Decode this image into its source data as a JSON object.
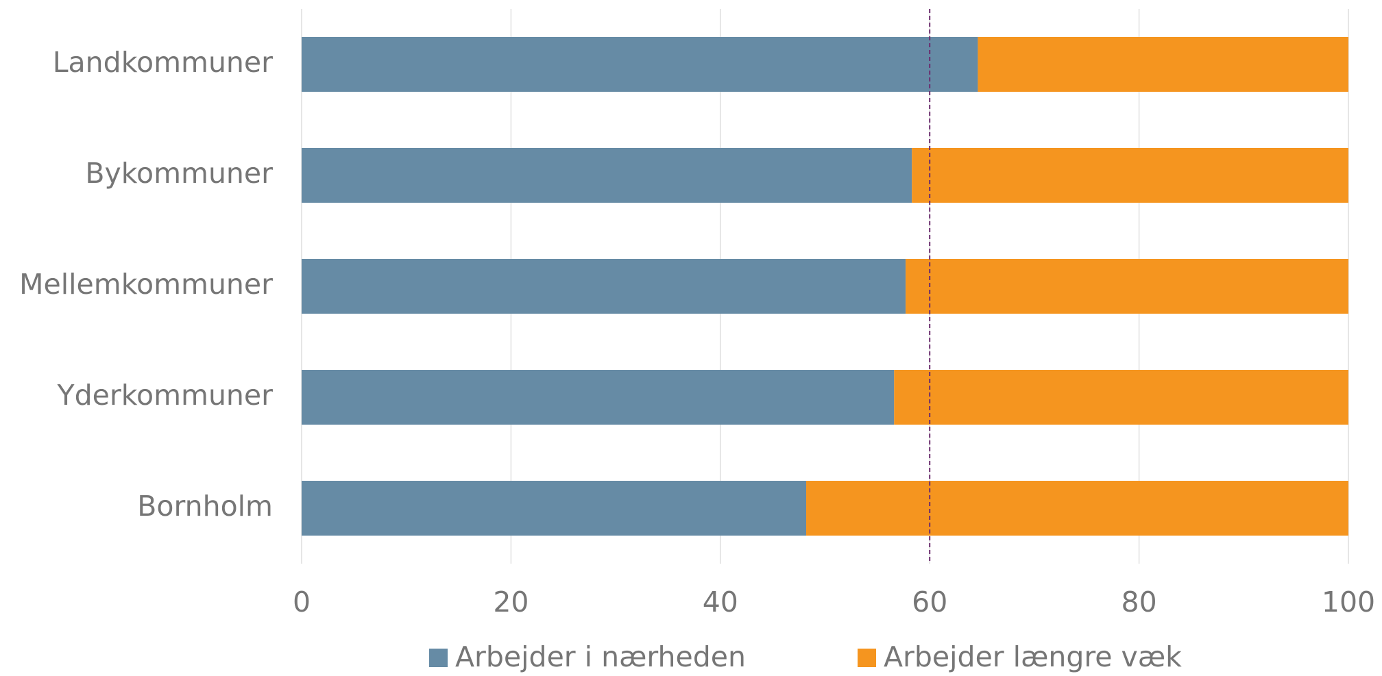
{
  "chart_data": {
    "type": "stacked_bar_horizontal",
    "categories": [
      "Landkommuner",
      "Bykommuner",
      "Mellemkommuner",
      "Yderkommuner",
      "Bornholm"
    ],
    "series": [
      {
        "name": "Arbejder i nærheden",
        "color": "#668ba5",
        "values": [
          64.6,
          58.3,
          57.7,
          56.6,
          48.2
        ]
      },
      {
        "name": "Arbejder længre væk",
        "color": "#f5951f",
        "values": [
          35.4,
          41.7,
          42.3,
          43.4,
          51.8
        ]
      }
    ],
    "xlim": [
      0,
      100
    ],
    "xticks": [
      0,
      20,
      40,
      60,
      80,
      100
    ],
    "grid": true,
    "reference_line": 60,
    "reference_color": "#6b2c6e",
    "legend": "bottom"
  }
}
